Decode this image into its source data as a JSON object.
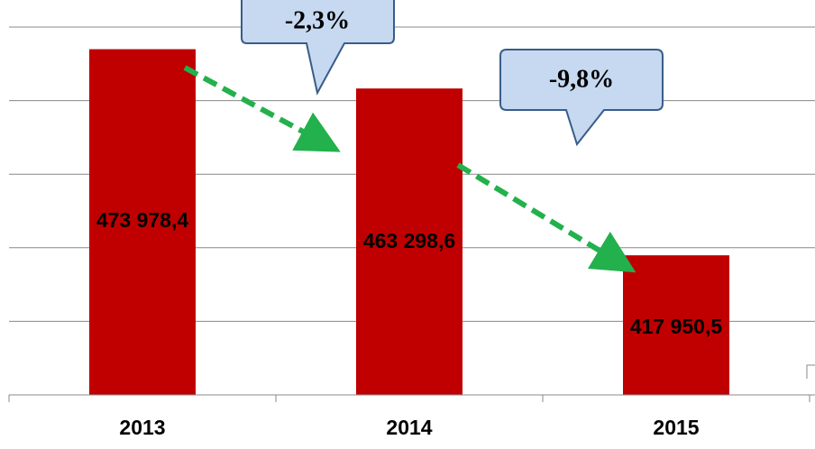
{
  "chart_data": {
    "type": "bar",
    "categories": [
      "2013",
      "2014",
      "2015"
    ],
    "values": [
      473978.4,
      463298.6,
      417950.5
    ],
    "value_labels": [
      "473 978,4",
      "463 298,6",
      "417 950,5"
    ],
    "color": "#c00000",
    "ylim": [
      380000,
      480000
    ],
    "yticks": [
      380000,
      400000,
      420000,
      440000,
      460000,
      480000
    ],
    "grid": true,
    "annotations": [
      "-2,3%",
      "-9,8%"
    ]
  }
}
